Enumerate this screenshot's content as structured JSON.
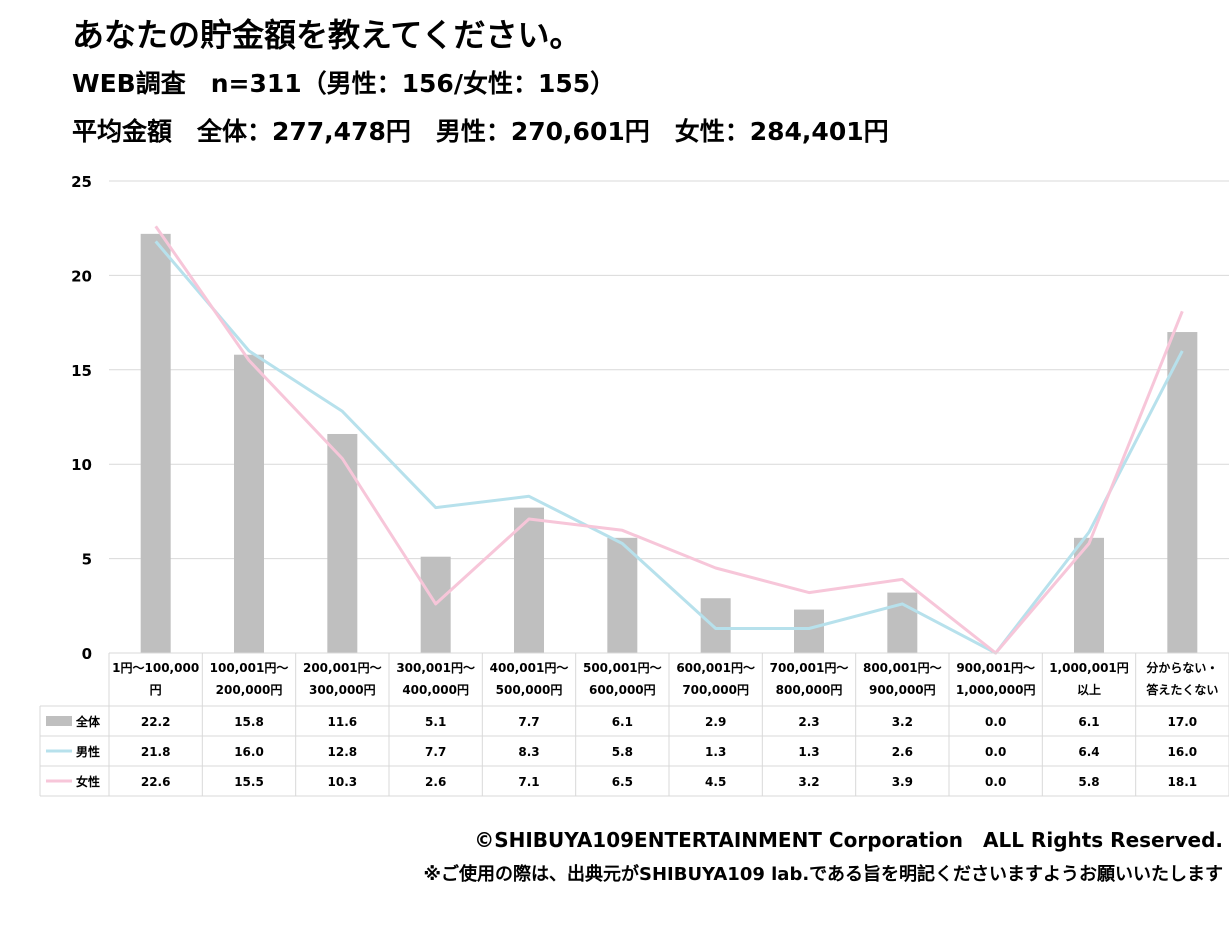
{
  "header": {
    "title": "あなたの貯金額を教えてください。",
    "subtitle": "WEB調査　n=311（男性：156/女性：155）",
    "average": "平均金額　全体：277,478円　男性：270,601円　女性：284,401円"
  },
  "footer": {
    "copyright": "©SHIBUYA109ENTERTAINMENT Corporation　ALL Rights Reserved.",
    "notice": "※ご使用の際は、出典元がSHIBUYA109 lab.である旨を明記くださいますようお願いいたします"
  },
  "chart_data": {
    "type": "bar",
    "categories": [
      [
        "1円〜100,000",
        "円"
      ],
      [
        "100,001円〜",
        "200,000円"
      ],
      [
        "200,001円〜",
        "300,000円"
      ],
      [
        "300,001円〜",
        "400,000円"
      ],
      [
        "400,001円〜",
        "500,000円"
      ],
      [
        "500,001円〜",
        "600,000円"
      ],
      [
        "600,001円〜",
        "700,000円"
      ],
      [
        "700,001円〜",
        "800,000円"
      ],
      [
        "800,001円〜",
        "900,000円"
      ],
      [
        "900,001円〜",
        "1,000,000円"
      ],
      [
        "1,000,001円",
        "以上"
      ],
      [
        "分からない・",
        "答えたくない"
      ]
    ],
    "series": [
      {
        "name": "全体",
        "render": "bar",
        "color": "#bfbfbf",
        "values": [
          22.2,
          15.8,
          11.6,
          5.1,
          7.7,
          6.1,
          2.9,
          2.3,
          3.2,
          0.0,
          6.1,
          17.0
        ]
      },
      {
        "name": "男性",
        "render": "line",
        "color": "#b7e1ec",
        "values": [
          21.8,
          16.0,
          12.8,
          7.7,
          8.3,
          5.8,
          1.3,
          1.3,
          2.6,
          0.0,
          6.4,
          16.0
        ]
      },
      {
        "name": "女性",
        "render": "line",
        "color": "#f7c6d9",
        "values": [
          22.6,
          15.5,
          10.3,
          2.6,
          7.1,
          6.5,
          4.5,
          3.2,
          3.9,
          0.0,
          5.8,
          18.1
        ]
      }
    ],
    "yticks": [
      0,
      5,
      10,
      15,
      20,
      25
    ],
    "ylim": [
      0,
      25
    ],
    "grid": true,
    "legend": "data-table",
    "value_format": "one-decimal"
  }
}
